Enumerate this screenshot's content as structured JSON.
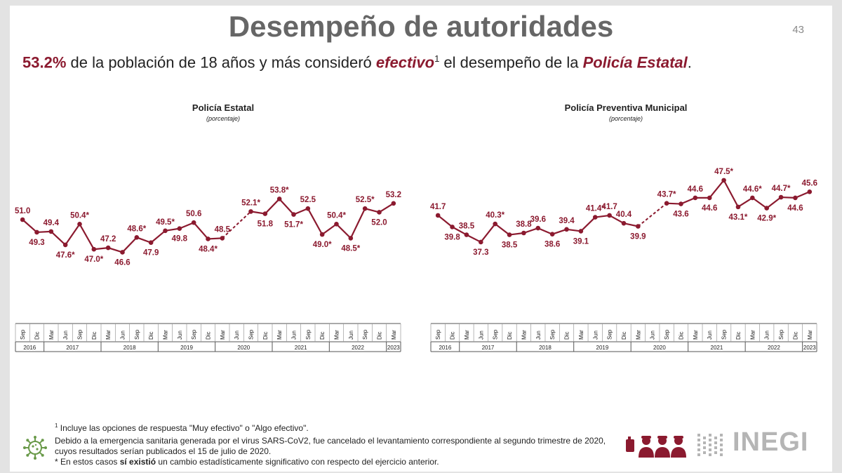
{
  "page": {
    "title": "Desempeño de autoridades",
    "page_number": "43",
    "subtitle": {
      "pct": "53.2%",
      "text1": " de la población de 18 años y más consideró ",
      "emph1": "efectivo",
      "sup": "1",
      "text2": " el desempeño de la ",
      "emph2": "Policía Estatal",
      "end": "."
    },
    "accent_color": "#8b1a2f"
  },
  "chart_data": [
    {
      "type": "line",
      "title": "Policía Estatal",
      "subtitle": "(porcentaje)",
      "categories": [
        "Sep",
        "Dic",
        "Mar",
        "Jun",
        "Sep",
        "Dic",
        "Mar",
        "Jun",
        "Sep",
        "Dic",
        "Mar",
        "Jun",
        "Sep",
        "Dic",
        "Mar",
        "Jun",
        "Sep",
        "Dic",
        "Mar",
        "Jun",
        "Sep",
        "Dic",
        "Mar",
        "Jun",
        "Sep",
        "Dic",
        "Mar"
      ],
      "years": [
        {
          "label": "2016",
          "span": 2
        },
        {
          "label": "2017",
          "span": 4
        },
        {
          "label": "2018",
          "span": 4
        },
        {
          "label": "2019",
          "span": 4
        },
        {
          "label": "2020",
          "span": 4
        },
        {
          "label": "2021",
          "span": 4
        },
        {
          "label": "2022",
          "span": 4
        },
        {
          "label": "2023",
          "span": 1
        }
      ],
      "values": [
        51.0,
        49.3,
        49.4,
        47.6,
        50.4,
        47.0,
        47.2,
        46.6,
        48.6,
        47.9,
        49.5,
        49.8,
        50.6,
        48.4,
        48.5,
        null,
        52.1,
        51.8,
        53.8,
        51.7,
        52.5,
        49.0,
        50.4,
        48.5,
        52.5,
        52.0,
        53.2
      ],
      "labels": [
        "51.0",
        "49.3",
        "49.4",
        "47.6*",
        "50.4*",
        "47.0*",
        "47.2",
        "46.6",
        "48.6*",
        "47.9",
        "49.5*",
        "49.8",
        "50.6",
        "48.4*",
        "48.5",
        "",
        "52.1*",
        "51.8",
        "53.8*",
        "51.7*",
        "52.5",
        "49.0*",
        "50.4*",
        "48.5*",
        "52.5*",
        "52.0",
        "53.2"
      ],
      "label_pos": [
        "up",
        "down",
        "up",
        "down",
        "up",
        "down",
        "up",
        "down",
        "up",
        "down",
        "up",
        "down",
        "up",
        "down",
        "up",
        "",
        "up",
        "down",
        "up",
        "down",
        "up",
        "down",
        "up",
        "down",
        "up",
        "down",
        "up"
      ],
      "ylim": [
        42,
        60
      ],
      "missing_note": "dashed line across Jun 2020"
    },
    {
      "type": "line",
      "title": "Policía Preventiva Municipal",
      "subtitle": "(porcentaje)",
      "categories": [
        "Sep",
        "Dic",
        "Mar",
        "Jun",
        "Sep",
        "Dic",
        "Mar",
        "Jun",
        "Sep",
        "Dic",
        "Mar",
        "Jun",
        "Sep",
        "Dic",
        "Mar",
        "Jun",
        "Sep",
        "Dic",
        "Mar",
        "Jun",
        "Sep",
        "Dic",
        "Mar",
        "Jun",
        "Sep",
        "Dic",
        "Mar"
      ],
      "years": [
        {
          "label": "2016",
          "span": 2
        },
        {
          "label": "2017",
          "span": 4
        },
        {
          "label": "2018",
          "span": 4
        },
        {
          "label": "2019",
          "span": 4
        },
        {
          "label": "2020",
          "span": 4
        },
        {
          "label": "2021",
          "span": 4
        },
        {
          "label": "2022",
          "span": 4
        },
        {
          "label": "2023",
          "span": 1
        }
      ],
      "values": [
        41.7,
        39.8,
        38.5,
        37.3,
        40.3,
        38.5,
        38.8,
        39.6,
        38.6,
        39.4,
        39.1,
        41.4,
        41.7,
        40.4,
        39.9,
        null,
        43.7,
        43.6,
        44.6,
        44.6,
        47.5,
        43.1,
        44.6,
        42.9,
        44.7,
        44.6,
        45.6
      ],
      "labels": [
        "41.7",
        "39.8",
        "38.5",
        "37.3",
        "40.3*",
        "38.5",
        "38.8",
        "39.6",
        "38.6",
        "39.4",
        "39.1",
        "41.4*",
        "41.7",
        "40.4",
        "39.9",
        "",
        "43.7*",
        "43.6",
        "44.6",
        "44.6",
        "47.5*",
        "43.1*",
        "44.6*",
        "42.9*",
        "44.7*",
        "44.6",
        "45.6"
      ],
      "label_pos": [
        "up",
        "down",
        "up",
        "down",
        "up",
        "down",
        "up",
        "up",
        "down",
        "up",
        "down",
        "up",
        "up",
        "up",
        "down",
        "",
        "up",
        "down",
        "up",
        "down",
        "up",
        "down",
        "up",
        "down",
        "up",
        "down",
        "up"
      ],
      "ylim": [
        30,
        52
      ],
      "missing_note": "dashed line across Jun 2020"
    }
  ],
  "footnotes": {
    "note1_sup": "1",
    "note1": " Incluye las opciones de respuesta \"Muy efectivo\" o \"Algo efectivo\".",
    "note2_line1": "Debido a la emergencia sanitaria generada por el virus SARS-CoV2, fue cancelado el levantamiento correspondiente al segundo trimestre de 2020,",
    "note2_line2": "cuyos resultados serían publicados el 15 de julio de 2020.",
    "note3_a": "* En estos casos ",
    "note3_b": "sí existió",
    "note3_c": " un cambio estadísticamente significativo con respecto del ejercicio anterior."
  },
  "logo": {
    "text": "INEGI"
  },
  "icons": [
    "virus-icon",
    "people-icon",
    "inegi-logo-icon"
  ]
}
